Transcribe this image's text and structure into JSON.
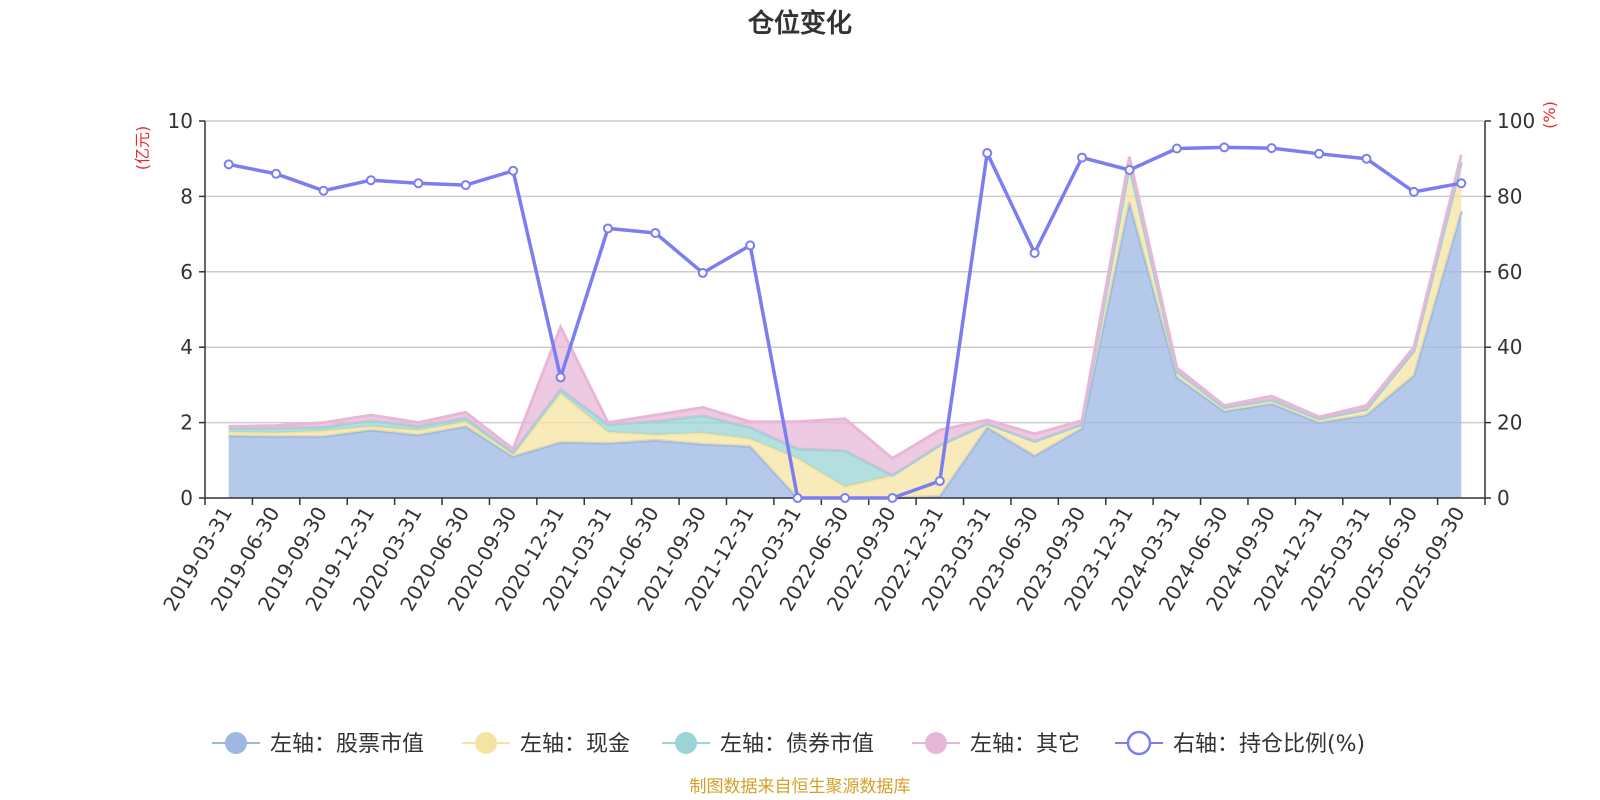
{
  "chart_data": {
    "type": "area",
    "title": "仓位变化",
    "left_unit": "(亿元)",
    "right_unit": "(%)",
    "left_ylim": [
      0,
      10
    ],
    "left_ticks": [
      "0",
      "2",
      "4",
      "6",
      "8",
      "10"
    ],
    "right_ylim": [
      0,
      100
    ],
    "right_ticks": [
      "0",
      "20",
      "40",
      "60",
      "80",
      "100"
    ],
    "categories": [
      "2019-03-31",
      "2019-06-30",
      "2019-09-30",
      "2019-12-31",
      "2020-03-31",
      "2020-06-30",
      "2020-09-30",
      "2020-12-31",
      "2021-03-31",
      "2021-06-30",
      "2021-09-30",
      "2021-12-31",
      "2022-03-31",
      "2022-06-30",
      "2022-09-30",
      "2022-12-31",
      "2023-03-31",
      "2023-06-30",
      "2023-09-30",
      "2023-12-31",
      "2024-03-31",
      "2024-06-30",
      "2024-09-30",
      "2024-12-31",
      "2025-03-31",
      "2025-06-30",
      "2025-09-30"
    ],
    "stacked_series": [
      {
        "name": "左轴：股票市值",
        "axis": "left",
        "color": "#9cb8e3",
        "values": [
          1.65,
          1.63,
          1.63,
          1.8,
          1.67,
          1.9,
          1.1,
          1.48,
          1.45,
          1.53,
          1.43,
          1.37,
          0.0,
          0.0,
          0.0,
          0.05,
          1.87,
          1.12,
          1.85,
          7.85,
          3.2,
          2.3,
          2.5,
          2.0,
          2.2,
          3.25,
          7.6
        ]
      },
      {
        "name": "左轴：现金",
        "axis": "left",
        "color": "#f7e3a1",
        "values": [
          0.1,
          0.1,
          0.15,
          0.1,
          0.13,
          0.12,
          0.05,
          1.3,
          0.3,
          0.15,
          0.3,
          0.2,
          1.05,
          0.3,
          0.6,
          1.35,
          0.1,
          0.38,
          0.1,
          0.95,
          0.15,
          0.1,
          0.1,
          0.1,
          0.15,
          0.65,
          1.3
        ]
      },
      {
        "name": "左轴：债券市值",
        "axis": "left",
        "color": "#99d4d6",
        "values": [
          0.1,
          0.12,
          0.1,
          0.15,
          0.1,
          0.1,
          0.05,
          0.1,
          0.2,
          0.35,
          0.45,
          0.3,
          0.25,
          0.95,
          0.0,
          0.0,
          0.0,
          0.0,
          0.0,
          0.0,
          0.0,
          0.0,
          0.0,
          0.0,
          0.0,
          0.0,
          0.0
        ]
      },
      {
        "name": "左轴：其它",
        "axis": "left",
        "color": "#e8b7d8",
        "values": [
          0.05,
          0.07,
          0.12,
          0.15,
          0.1,
          0.15,
          0.1,
          1.65,
          0.05,
          0.17,
          0.22,
          0.15,
          0.72,
          0.85,
          0.45,
          0.4,
          0.1,
          0.2,
          0.1,
          0.25,
          0.1,
          0.05,
          0.1,
          0.05,
          0.1,
          0.1,
          0.2
        ]
      }
    ],
    "line_series": {
      "name": "右轴：持仓比例(%)",
      "axis": "right",
      "color": "#7b7ef0",
      "values": [
        88.5,
        86,
        81.5,
        84.3,
        83.5,
        83,
        86.8,
        32,
        71.5,
        70.3,
        59.7,
        67,
        0,
        0,
        0,
        4.5,
        91.5,
        65,
        90.3,
        87,
        92.7,
        93,
        92.8,
        91.3,
        90,
        81.2,
        83.5
      ]
    },
    "legend_position": "bottom",
    "grid": true
  },
  "footer": {
    "source": "制图数据来自恒生聚源数据库"
  }
}
